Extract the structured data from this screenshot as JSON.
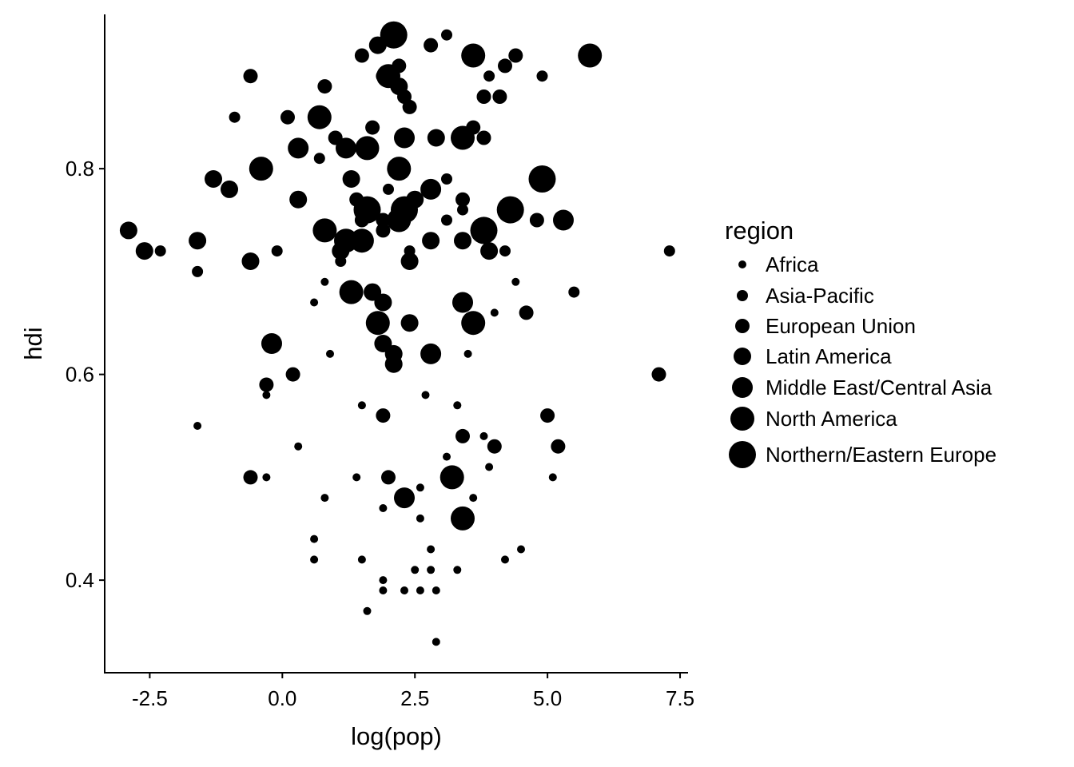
{
  "chart_data": {
    "type": "scatter",
    "xlabel": "log(pop)",
    "ylabel": "hdi",
    "xlim": [
      -3.35,
      7.65
    ],
    "ylim": [
      0.31,
      0.95
    ],
    "x_ticks": [
      -2.5,
      0.0,
      2.5,
      5.0,
      7.5
    ],
    "x_tick_labels": [
      "-2.5",
      "0.0",
      "2.5",
      "5.0",
      "7.5"
    ],
    "y_ticks": [
      0.4,
      0.6,
      0.8
    ],
    "y_tick_labels": [
      "0.4",
      "0.6",
      "0.8"
    ],
    "grid": false,
    "legend": {
      "title": "region",
      "placement": "right",
      "encoding": "size",
      "entries": [
        "Africa",
        "Asia-Pacific",
        "European Union",
        "Latin America",
        "Middle East/Central Asia",
        "North America",
        "Northern/Eastern Europe"
      ]
    },
    "point_color": "#000000",
    "points": [
      [
        2.1,
        0.93,
        7
      ],
      [
        3.1,
        0.93,
        2
      ],
      [
        1.8,
        0.92,
        4
      ],
      [
        2.8,
        0.92,
        3
      ],
      [
        1.5,
        0.91,
        3
      ],
      [
        3.6,
        0.91,
        6
      ],
      [
        4.4,
        0.91,
        3
      ],
      [
        5.8,
        0.91,
        6
      ],
      [
        1.9,
        0.89,
        3
      ],
      [
        2.2,
        0.9,
        3
      ],
      [
        4.2,
        0.9,
        3
      ],
      [
        -0.6,
        0.89,
        3
      ],
      [
        2.0,
        0.89,
        6
      ],
      [
        3.9,
        0.89,
        2
      ],
      [
        4.9,
        0.89,
        2
      ],
      [
        2.2,
        0.88,
        4
      ],
      [
        0.8,
        0.88,
        3
      ],
      [
        2.3,
        0.87,
        3
      ],
      [
        3.8,
        0.87,
        3
      ],
      [
        4.1,
        0.87,
        3
      ],
      [
        2.4,
        0.86,
        3
      ],
      [
        -0.9,
        0.85,
        2
      ],
      [
        0.1,
        0.85,
        3
      ],
      [
        0.7,
        0.85,
        6
      ],
      [
        1.7,
        0.84,
        3
      ],
      [
        3.6,
        0.84,
        3
      ],
      [
        1.0,
        0.83,
        3
      ],
      [
        2.3,
        0.83,
        5
      ],
      [
        2.9,
        0.83,
        4
      ],
      [
        3.4,
        0.83,
        6
      ],
      [
        3.8,
        0.83,
        3
      ],
      [
        0.3,
        0.82,
        5
      ],
      [
        1.2,
        0.82,
        5
      ],
      [
        1.6,
        0.82,
        6
      ],
      [
        0.7,
        0.81,
        2
      ],
      [
        -0.4,
        0.8,
        6
      ],
      [
        2.2,
        0.8,
        6
      ],
      [
        -1.3,
        0.79,
        4
      ],
      [
        1.3,
        0.79,
        4
      ],
      [
        3.1,
        0.79,
        2
      ],
      [
        4.9,
        0.79,
        7
      ],
      [
        -1.0,
        0.78,
        4
      ],
      [
        2.0,
        0.78,
        2
      ],
      [
        2.8,
        0.78,
        5
      ],
      [
        0.3,
        0.77,
        4
      ],
      [
        1.4,
        0.77,
        3
      ],
      [
        2.5,
        0.77,
        4
      ],
      [
        3.4,
        0.77,
        3
      ],
      [
        1.6,
        0.76,
        7
      ],
      [
        2.3,
        0.76,
        7
      ],
      [
        3.4,
        0.76,
        2
      ],
      [
        4.3,
        0.76,
        7
      ],
      [
        1.5,
        0.75,
        3
      ],
      [
        1.9,
        0.75,
        3
      ],
      [
        2.2,
        0.75,
        6
      ],
      [
        3.1,
        0.75,
        2
      ],
      [
        4.8,
        0.75,
        3
      ],
      [
        5.3,
        0.75,
        5
      ],
      [
        -2.9,
        0.74,
        4
      ],
      [
        0.8,
        0.74,
        6
      ],
      [
        1.9,
        0.74,
        3
      ],
      [
        3.8,
        0.74,
        7
      ],
      [
        -1.6,
        0.73,
        4
      ],
      [
        1.2,
        0.73,
        6
      ],
      [
        1.5,
        0.73,
        6
      ],
      [
        2.8,
        0.73,
        4
      ],
      [
        3.4,
        0.73,
        4
      ],
      [
        -2.6,
        0.72,
        4
      ],
      [
        -2.3,
        0.72,
        2
      ],
      [
        -0.1,
        0.72,
        2
      ],
      [
        1.1,
        0.72,
        4
      ],
      [
        2.4,
        0.72,
        2
      ],
      [
        3.9,
        0.72,
        4
      ],
      [
        4.2,
        0.72,
        2
      ],
      [
        7.3,
        0.72,
        2
      ],
      [
        -0.6,
        0.71,
        4
      ],
      [
        1.1,
        0.71,
        2
      ],
      [
        2.4,
        0.71,
        4
      ],
      [
        -1.6,
        0.7,
        2
      ],
      [
        0.8,
        0.69,
        1
      ],
      [
        4.4,
        0.69,
        1
      ],
      [
        1.3,
        0.68,
        6
      ],
      [
        1.7,
        0.68,
        4
      ],
      [
        5.5,
        0.68,
        2
      ],
      [
        0.6,
        0.67,
        1
      ],
      [
        1.9,
        0.67,
        4
      ],
      [
        3.4,
        0.67,
        5
      ],
      [
        4.0,
        0.66,
        1
      ],
      [
        4.6,
        0.66,
        3
      ],
      [
        1.8,
        0.65,
        6
      ],
      [
        2.4,
        0.65,
        4
      ],
      [
        3.6,
        0.65,
        6
      ],
      [
        -0.2,
        0.63,
        5
      ],
      [
        1.9,
        0.63,
        4
      ],
      [
        2.1,
        0.62,
        4
      ],
      [
        2.8,
        0.62,
        5
      ],
      [
        0.9,
        0.62,
        1
      ],
      [
        3.5,
        0.62,
        1
      ],
      [
        2.1,
        0.61,
        4
      ],
      [
        0.2,
        0.6,
        3
      ],
      [
        7.1,
        0.6,
        3
      ],
      [
        -0.3,
        0.59,
        3
      ],
      [
        -0.3,
        0.58,
        1
      ],
      [
        2.7,
        0.58,
        1
      ],
      [
        1.5,
        0.57,
        1
      ],
      [
        3.3,
        0.57,
        1
      ],
      [
        1.9,
        0.56,
        3
      ],
      [
        5.0,
        0.56,
        3
      ],
      [
        -1.6,
        0.55,
        1
      ],
      [
        3.4,
        0.54,
        3
      ],
      [
        3.8,
        0.54,
        1
      ],
      [
        0.3,
        0.53,
        1
      ],
      [
        4.0,
        0.53,
        3
      ],
      [
        5.2,
        0.53,
        3
      ],
      [
        3.1,
        0.52,
        1
      ],
      [
        3.9,
        0.51,
        1
      ],
      [
        -0.6,
        0.5,
        3
      ],
      [
        -0.3,
        0.5,
        1
      ],
      [
        1.4,
        0.5,
        1
      ],
      [
        2.0,
        0.5,
        3
      ],
      [
        3.2,
        0.5,
        6
      ],
      [
        5.1,
        0.5,
        1
      ],
      [
        2.6,
        0.49,
        1
      ],
      [
        0.8,
        0.48,
        1
      ],
      [
        2.3,
        0.48,
        5
      ],
      [
        3.6,
        0.48,
        1
      ],
      [
        1.9,
        0.47,
        1
      ],
      [
        2.6,
        0.46,
        1
      ],
      [
        3.4,
        0.46,
        6
      ],
      [
        0.6,
        0.44,
        1
      ],
      [
        2.8,
        0.43,
        1
      ],
      [
        4.5,
        0.43,
        1
      ],
      [
        0.6,
        0.42,
        1
      ],
      [
        1.5,
        0.42,
        1
      ],
      [
        4.2,
        0.42,
        1
      ],
      [
        2.5,
        0.41,
        1
      ],
      [
        2.8,
        0.41,
        1
      ],
      [
        3.3,
        0.41,
        1
      ],
      [
        1.9,
        0.4,
        1
      ],
      [
        1.9,
        0.39,
        1
      ],
      [
        2.3,
        0.39,
        1
      ],
      [
        2.6,
        0.39,
        1
      ],
      [
        2.9,
        0.39,
        1
      ],
      [
        1.6,
        0.37,
        1
      ],
      [
        2.9,
        0.34,
        1
      ]
    ]
  }
}
